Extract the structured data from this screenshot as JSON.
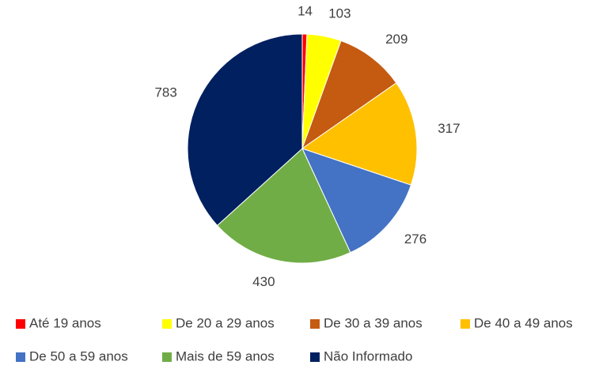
{
  "chart_data": {
    "type": "pie",
    "categories": [
      "Até 19 anos",
      "De 20 a 29 anos",
      "De 30 a 39 anos",
      "De 40 a 49 anos",
      "De 50 a 59 anos",
      "Mais de 59 anos",
      "Não Informado"
    ],
    "values": [
      14,
      103,
      209,
      317,
      276,
      430,
      783
    ],
    "colors": [
      "#ff0000",
      "#ffff00",
      "#c55a11",
      "#ffc000",
      "#4472c4",
      "#70ad47",
      "#002060"
    ],
    "legend": "bottom"
  }
}
